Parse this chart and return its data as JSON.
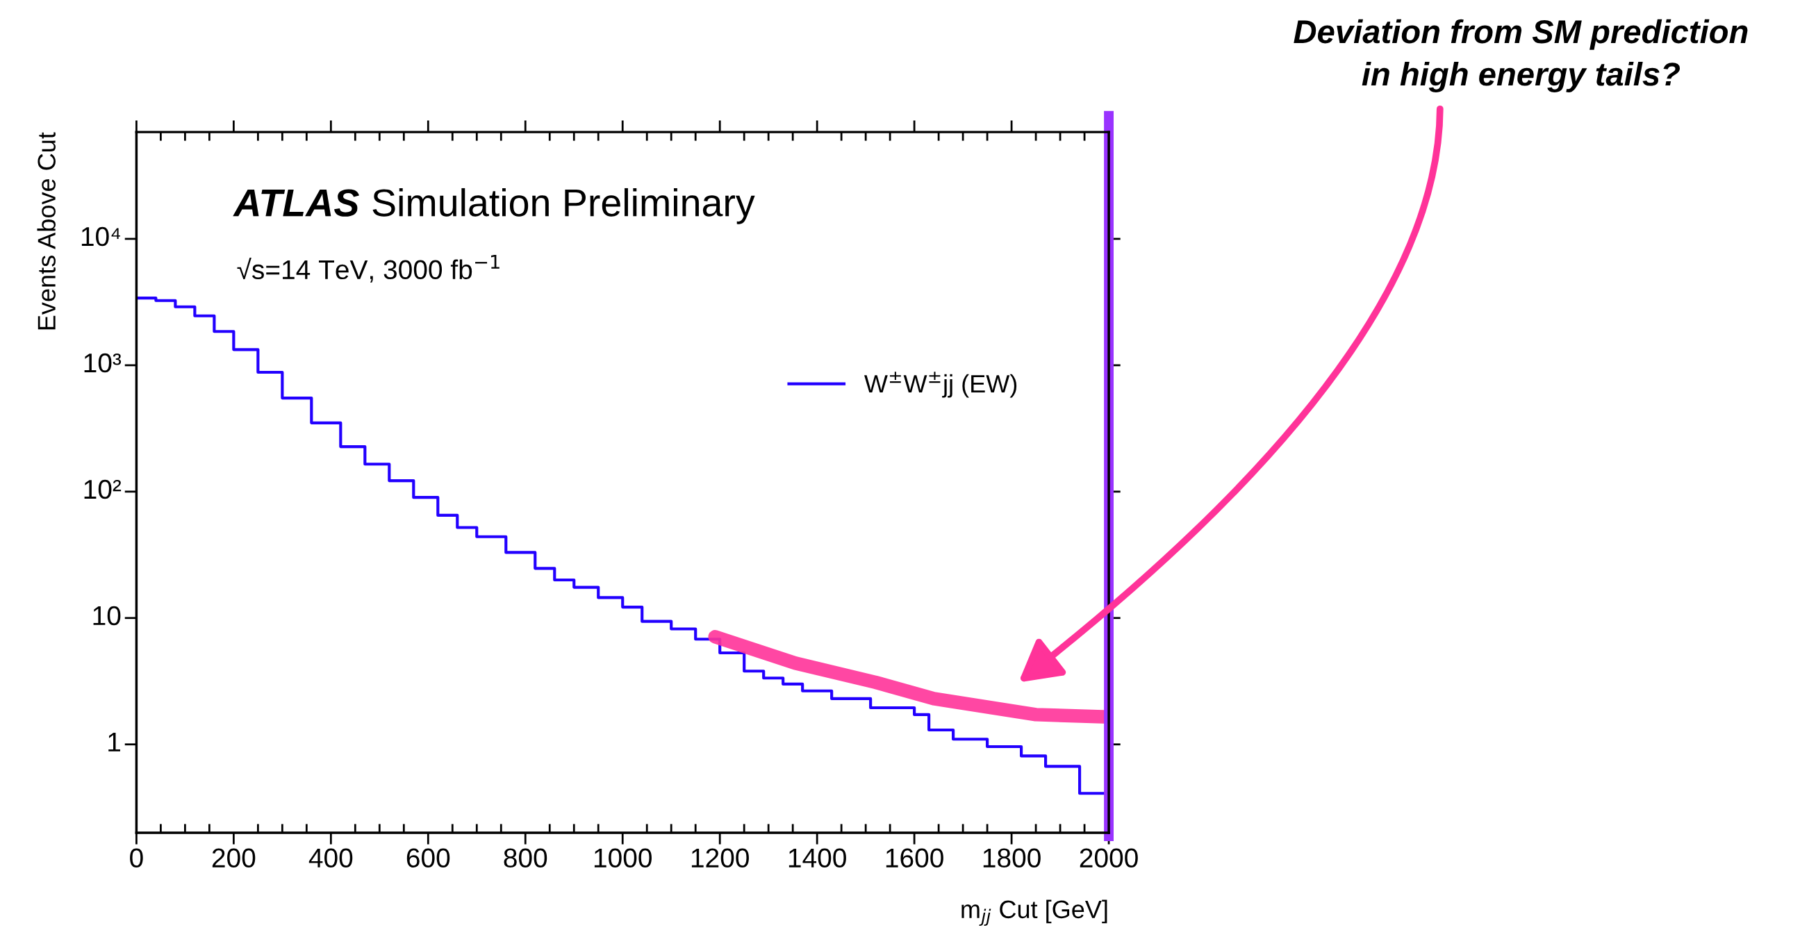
{
  "chart_data": {
    "type": "step",
    "xlabel": "m$_{jj}$ Cut [GeV]",
    "ylabel": "Events Above Cut",
    "xlim": [
      0,
      2000
    ],
    "xticks": [
      0,
      200,
      400,
      600,
      800,
      1000,
      1200,
      1400,
      1600,
      1800,
      2000
    ],
    "ylim": [
      0.2,
      70000
    ],
    "yticks": [
      1,
      10,
      {
        "value": 100,
        "label": "10²"
      },
      {
        "value": 1000,
        "label": "10³"
      },
      {
        "value": 10000,
        "label": "10⁴"
      }
    ],
    "log": "y",
    "grid": false,
    "legend": "top right",
    "series": [
      {
        "name": "W$^{±}$W$^{±}$jj (EW)",
        "color": "#2200ff",
        "x": [
          0,
          40,
          80,
          120,
          160,
          200,
          250,
          300,
          360,
          420,
          470,
          520,
          570,
          620,
          660,
          700,
          760,
          820,
          860,
          900,
          950,
          1000,
          1040,
          1100,
          1150,
          1200,
          1250,
          1290,
          1330,
          1370,
          1430,
          1510,
          1600,
          1630,
          1680,
          1750,
          1820,
          1870,
          1940,
          2000
        ],
        "values": [
          3400,
          3250,
          2900,
          2460,
          1850,
          1330,
          880,
          550,
          350,
          227,
          165,
          122,
          90,
          65,
          52,
          44,
          33,
          24.7,
          20,
          17.5,
          14.5,
          12.2,
          9.4,
          8.2,
          6.8,
          5.3,
          3.8,
          3.35,
          3.0,
          2.65,
          2.3,
          1.95,
          1.72,
          1.3,
          1.1,
          0.96,
          0.81,
          0.67,
          0.41,
          0.41
        ]
      },
      {
        "type": "line",
        "color": "#ff3399",
        "x": [
          1190,
          1355,
          1520,
          1640,
          1850,
          2000
        ],
        "values": [
          7.1,
          4.4,
          3.1,
          2.3,
          1.72,
          1.65
        ]
      }
    ],
    "ref_lines": [
      {
        "axis": "x",
        "value": 2000,
        "color": "#9933ff"
      }
    ],
    "annotations": [
      "ATLAS",
      "Simulation Preliminary",
      "√s=14 TeV, 3000 fb$^{−1}$",
      "Deviation from SM prediction\nin high energy tails?"
    ]
  }
}
